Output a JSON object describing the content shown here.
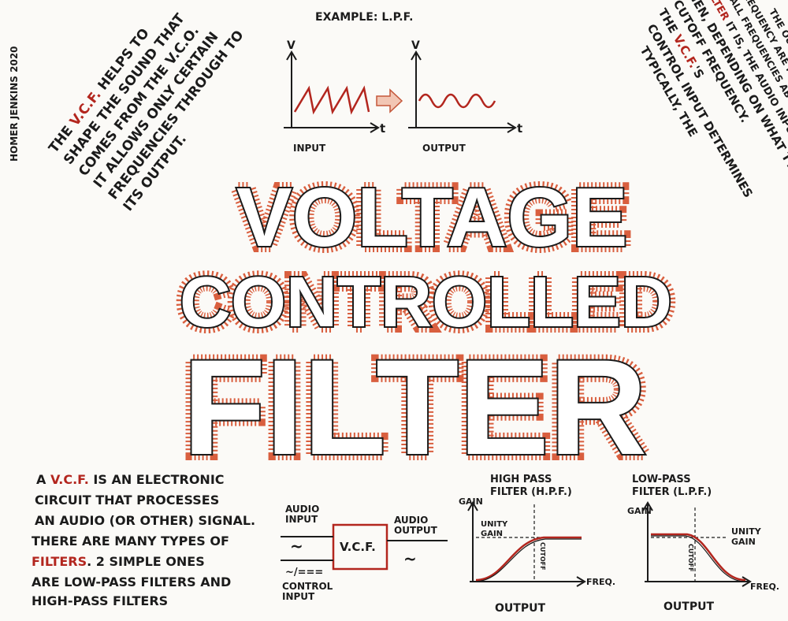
{
  "credit": "HOMER JENKINS 2020",
  "left_note": {
    "lines": [
      [
        "THE ",
        "V.C.F.",
        " HELPS TO"
      ],
      [
        "SHAPE THE SOUND THAT"
      ],
      [
        "COMES FROM THE V.C.O."
      ],
      [
        "IT ALLOWS ONLY CERTAIN"
      ],
      [
        "FREQUENCIES THROUGH TO"
      ],
      [
        "ITS OUTPUT."
      ]
    ]
  },
  "example": {
    "title": "EXAMPLE: L.P.F.",
    "input_label": "INPUT",
    "output_label": "OUTPUT",
    "v_axis": "V",
    "t_axis": "t"
  },
  "right_note": {
    "lines": [
      [
        "TYPICALLY, THE"
      ],
      [
        "CONTROL INPUT DETERMINES"
      ],
      [
        "THE ",
        "V.C.F.",
        "'S"
      ],
      [
        "CUTOFF FREQUENCY."
      ],
      [
        "THEN, DEPENDING ON WHAT TYPE"
      ],
      [
        "OF ",
        "FILTER",
        " IT IS, THE AUDIO INPUT IS PROCESSED"
      ],
      [
        "SO THAT ALL FREQUENCIES ABOVE (OR BELOW) THE"
      ],
      [
        "CUTOFF FREQUENCY ARE PASSED THROUGH TO"
      ],
      [
        "THE OUTPUT."
      ]
    ]
  },
  "title": {
    "line1": "VOLTAGE",
    "line2": "CONTROLLED",
    "line3": "FILTER"
  },
  "bottom_note": {
    "lines": [
      [
        "A ",
        "V.C.F.",
        " IS AN ELECTRONIC"
      ],
      [
        "CIRCUIT THAT PROCESSES"
      ],
      [
        "AN AUDIO (OR OTHER) SIGNAL."
      ],
      [
        "THERE ARE MANY TYPES OF"
      ],
      [
        "FILTERS",
        ". 2 SIMPLE ONES"
      ],
      [
        "ARE LOW-PASS FILTERS AND"
      ],
      [
        "HIGH-PASS FILTERS"
      ]
    ]
  },
  "block": {
    "box_label": "V.C.F.",
    "audio_input": "AUDIO\nINPUT",
    "audio_output": "AUDIO\nOUTPUT",
    "control_input": "CONTROL\nINPUT",
    "sine_glyph": "~",
    "control_glyph": "~/==="
  },
  "hpf": {
    "title": "HIGH PASS\nFILTER (H.P.F.)",
    "gain": "GAIN",
    "unity": "UNITY\nGAIN",
    "cutoff": "CUTOFF",
    "freq": "FREQ.",
    "output": "OUTPUT"
  },
  "lpf": {
    "title": "LOW-PASS\nFILTER (L.P.F.)",
    "gain": "GAIN",
    "unity": "UNITY\nGAIN",
    "cutoff": "CUTOFF",
    "freq": "FREQ.",
    "output": "OUTPUT"
  },
  "colors": {
    "ink": "#1b1b1b",
    "accent": "#b3261e",
    "glow": "#d4451f",
    "paper": "#fbfaf7"
  }
}
